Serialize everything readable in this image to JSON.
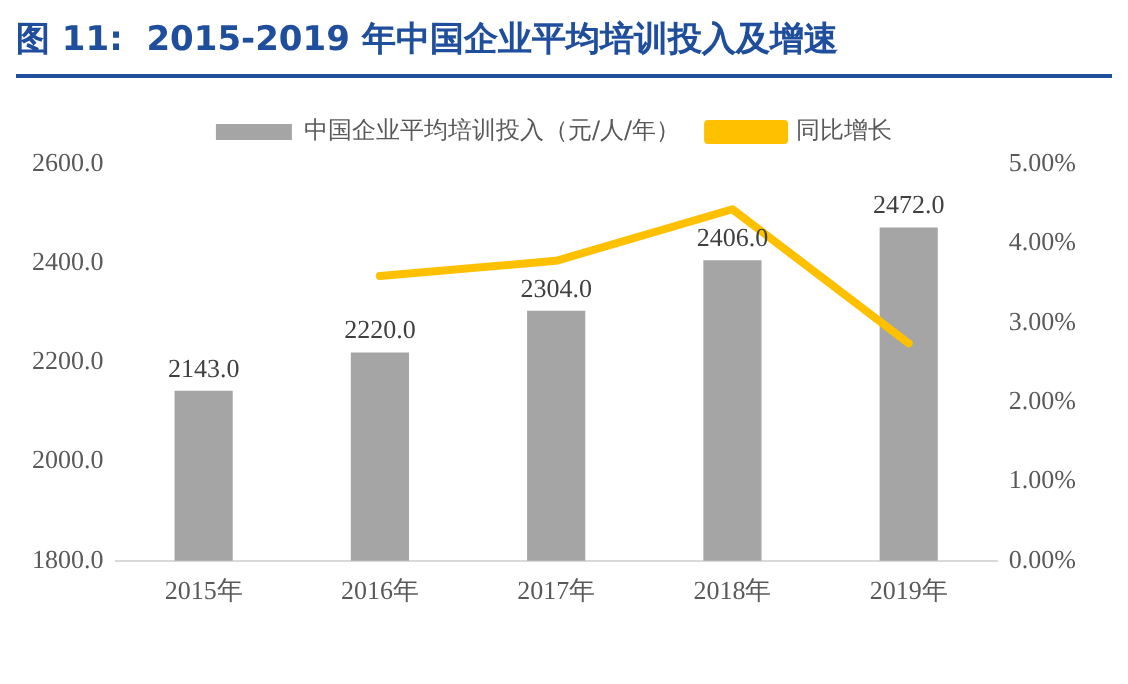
{
  "chart_data": {
    "type": "bar",
    "title": "图 11:  2015-2019 年中国企业平均培训投入及增速",
    "categories": [
      "2015年",
      "2016年",
      "2017年",
      "2018年",
      "2019年"
    ],
    "series": [
      {
        "name": "中国企业平均培训投入（元/人/年）",
        "color": "#a5a5a5",
        "values": [
          2143,
          2220,
          2304,
          2406,
          2472
        ],
        "value_labels": [
          "2143.0",
          "2220.0",
          "2304.0",
          "2406.0",
          "2472.0"
        ]
      },
      {
        "name": "同比增长",
        "type": "line",
        "axis": "y2",
        "color": "#ffc000",
        "values": [
          null,
          3.59,
          3.78,
          4.43,
          2.74
        ]
      }
    ],
    "ylim": [
      1800,
      2600
    ],
    "yticks": [
      {
        "value": 1800,
        "label": "1800.0"
      },
      {
        "value": 2000,
        "label": "2000.0"
      },
      {
        "value": 2200,
        "label": "2200.0"
      },
      {
        "value": 2400,
        "label": "2400.0"
      },
      {
        "value": 2600,
        "label": "2600.0"
      }
    ],
    "y2lim": [
      0,
      5
    ],
    "y2ticks": [
      {
        "value": 0,
        "label": "0.00%"
      },
      {
        "value": 1,
        "label": "1.00%"
      },
      {
        "value": 2,
        "label": "2.00%"
      },
      {
        "value": 3,
        "label": "3.00%"
      },
      {
        "value": 4,
        "label": "4.00%"
      },
      {
        "value": 5,
        "label": "5.00%"
      }
    ],
    "grid": false,
    "legend": "top",
    "marker": "none",
    "line_style": "solid"
  }
}
